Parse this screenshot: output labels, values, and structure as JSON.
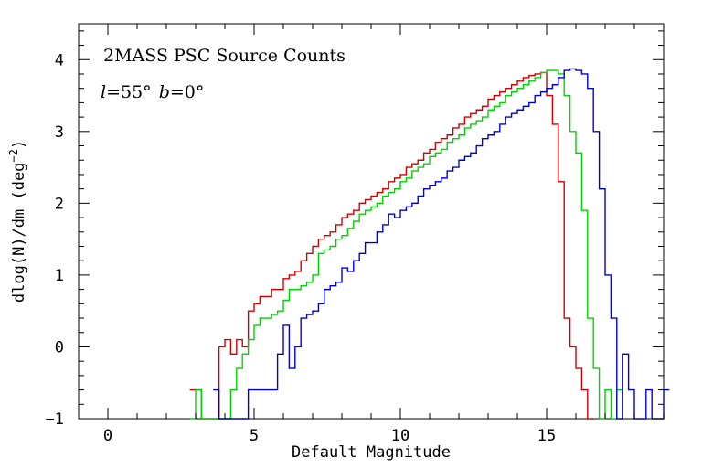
{
  "chart_data": {
    "type": "line",
    "style": "step-histogram",
    "title": "",
    "xlabel": "Default Magnitude",
    "ylabel": "dlog(N)/dm (deg⁻²)",
    "ylabel_main": "dlog(N)/dm (deg",
    "ylabel_exp": "−2",
    "ylabel_close": ")",
    "xlim": [
      -1,
      19
    ],
    "ylim": [
      -1,
      4.5
    ],
    "x_ticks": [
      0,
      5,
      10,
      15
    ],
    "x_tick_labels": [
      "0",
      "5",
      "10",
      "15"
    ],
    "y_ticks": [
      -1,
      0,
      1,
      2,
      3,
      4
    ],
    "y_tick_labels": [
      "−1",
      "0",
      "1",
      "2",
      "3",
      "4"
    ],
    "annotations": {
      "survey": "2MASS PSC Source Counts",
      "l_var": "l",
      "l_value": "=55°",
      "b_var": "b",
      "b_value": "=0°"
    },
    "bin_width": 0.2,
    "series": [
      {
        "name": "red",
        "color": "#d40000",
        "bins": [
          [
            2.8,
            -0.6
          ],
          [
            3.0,
            -0.6
          ],
          [
            3.2,
            -1.0
          ],
          [
            3.4,
            -1.0
          ],
          [
            3.6,
            -1.0
          ],
          [
            3.8,
            0.0
          ],
          [
            4.0,
            0.1
          ],
          [
            4.2,
            -0.1
          ],
          [
            4.4,
            0.1
          ],
          [
            4.6,
            0.0
          ],
          [
            4.8,
            0.5
          ],
          [
            5.0,
            0.6
          ],
          [
            5.2,
            0.7
          ],
          [
            5.4,
            0.7
          ],
          [
            5.6,
            0.8
          ],
          [
            5.8,
            0.8
          ],
          [
            6.0,
            0.95
          ],
          [
            6.2,
            1.0
          ],
          [
            6.4,
            1.05
          ],
          [
            6.6,
            1.2
          ],
          [
            6.8,
            1.3
          ],
          [
            7.0,
            1.4
          ],
          [
            7.2,
            1.5
          ],
          [
            7.4,
            1.55
          ],
          [
            7.6,
            1.6
          ],
          [
            7.8,
            1.7
          ],
          [
            8.0,
            1.8
          ],
          [
            8.2,
            1.85
          ],
          [
            8.4,
            1.9
          ],
          [
            8.6,
            2.0
          ],
          [
            8.8,
            2.05
          ],
          [
            9.0,
            2.1
          ],
          [
            9.2,
            2.15
          ],
          [
            9.4,
            2.2
          ],
          [
            9.6,
            2.3
          ],
          [
            9.8,
            2.35
          ],
          [
            10.0,
            2.4
          ],
          [
            10.2,
            2.5
          ],
          [
            10.4,
            2.55
          ],
          [
            10.6,
            2.6
          ],
          [
            10.8,
            2.7
          ],
          [
            11.0,
            2.75
          ],
          [
            11.2,
            2.85
          ],
          [
            11.4,
            2.9
          ],
          [
            11.6,
            2.95
          ],
          [
            11.8,
            3.05
          ],
          [
            12.0,
            3.1
          ],
          [
            12.2,
            3.2
          ],
          [
            12.4,
            3.25
          ],
          [
            12.6,
            3.3
          ],
          [
            12.8,
            3.35
          ],
          [
            13.0,
            3.45
          ],
          [
            13.2,
            3.5
          ],
          [
            13.4,
            3.55
          ],
          [
            13.6,
            3.6
          ],
          [
            13.8,
            3.65
          ],
          [
            14.0,
            3.7
          ],
          [
            14.2,
            3.75
          ],
          [
            14.4,
            3.78
          ],
          [
            14.6,
            3.8
          ],
          [
            14.8,
            3.82
          ],
          [
            15.0,
            3.5
          ],
          [
            15.2,
            3.1
          ],
          [
            15.4,
            2.3
          ],
          [
            15.6,
            0.4
          ],
          [
            15.8,
            0.0
          ],
          [
            16.0,
            -0.3
          ],
          [
            16.2,
            -0.6
          ],
          [
            16.4,
            -1.0
          ]
        ]
      },
      {
        "name": "green",
        "color": "#00d400",
        "bins": [
          [
            2.8,
            -1.0
          ],
          [
            3.0,
            -0.6
          ],
          [
            3.2,
            -1.0
          ],
          [
            3.4,
            -1.0
          ],
          [
            3.6,
            -1.0
          ],
          [
            3.8,
            -1.0
          ],
          [
            4.0,
            -1.0
          ],
          [
            4.2,
            -0.6
          ],
          [
            4.4,
            -0.3
          ],
          [
            4.6,
            -0.1
          ],
          [
            4.8,
            0.1
          ],
          [
            5.0,
            0.3
          ],
          [
            5.2,
            0.4
          ],
          [
            5.4,
            0.4
          ],
          [
            5.6,
            0.45
          ],
          [
            5.8,
            0.5
          ],
          [
            6.0,
            0.65
          ],
          [
            6.2,
            0.8
          ],
          [
            6.4,
            0.8
          ],
          [
            6.6,
            0.85
          ],
          [
            6.8,
            0.9
          ],
          [
            7.0,
            1.0
          ],
          [
            7.2,
            1.3
          ],
          [
            7.4,
            1.35
          ],
          [
            7.6,
            1.4
          ],
          [
            7.8,
            1.5
          ],
          [
            8.0,
            1.55
          ],
          [
            8.2,
            1.65
          ],
          [
            8.4,
            1.75
          ],
          [
            8.6,
            1.85
          ],
          [
            8.8,
            1.9
          ],
          [
            9.0,
            1.95
          ],
          [
            9.2,
            2.0
          ],
          [
            9.4,
            2.1
          ],
          [
            9.6,
            2.15
          ],
          [
            9.8,
            2.2
          ],
          [
            10.0,
            2.3
          ],
          [
            10.2,
            2.35
          ],
          [
            10.4,
            2.45
          ],
          [
            10.6,
            2.5
          ],
          [
            10.8,
            2.55
          ],
          [
            11.0,
            2.65
          ],
          [
            11.2,
            2.7
          ],
          [
            11.4,
            2.75
          ],
          [
            11.6,
            2.85
          ],
          [
            11.8,
            2.9
          ],
          [
            12.0,
            2.95
          ],
          [
            12.2,
            3.05
          ],
          [
            12.4,
            3.1
          ],
          [
            12.6,
            3.15
          ],
          [
            12.8,
            3.2
          ],
          [
            13.0,
            3.3
          ],
          [
            13.2,
            3.35
          ],
          [
            13.4,
            3.4
          ],
          [
            13.6,
            3.5
          ],
          [
            13.8,
            3.55
          ],
          [
            14.0,
            3.6
          ],
          [
            14.2,
            3.65
          ],
          [
            14.4,
            3.7
          ],
          [
            14.6,
            3.75
          ],
          [
            14.8,
            3.82
          ],
          [
            15.0,
            3.85
          ],
          [
            15.2,
            3.85
          ],
          [
            15.4,
            3.8
          ],
          [
            15.6,
            3.5
          ],
          [
            15.8,
            3.0
          ],
          [
            16.0,
            2.7
          ],
          [
            16.2,
            1.9
          ],
          [
            16.4,
            0.4
          ],
          [
            16.6,
            -0.3
          ],
          [
            16.8,
            -1.0
          ],
          [
            17.0,
            -0.6
          ],
          [
            17.2,
            -1.0
          ],
          [
            17.4,
            -0.6
          ]
        ]
      },
      {
        "name": "blue",
        "color": "#0000d4",
        "bins": [
          [
            3.6,
            -0.6
          ],
          [
            3.8,
            -1.0
          ],
          [
            4.0,
            -1.0
          ],
          [
            4.2,
            -1.0
          ],
          [
            4.4,
            -1.0
          ],
          [
            4.6,
            -1.0
          ],
          [
            4.8,
            -0.6
          ],
          [
            5.0,
            -0.6
          ],
          [
            5.2,
            -0.6
          ],
          [
            5.4,
            -0.6
          ],
          [
            5.6,
            -0.6
          ],
          [
            5.8,
            -0.1
          ],
          [
            6.0,
            0.3
          ],
          [
            6.2,
            -0.3
          ],
          [
            6.4,
            0.0
          ],
          [
            6.6,
            0.4
          ],
          [
            6.8,
            0.45
          ],
          [
            7.0,
            0.5
          ],
          [
            7.2,
            0.6
          ],
          [
            7.4,
            0.8
          ],
          [
            7.6,
            0.85
          ],
          [
            7.8,
            0.9
          ],
          [
            8.0,
            1.1
          ],
          [
            8.2,
            1.05
          ],
          [
            8.4,
            1.2
          ],
          [
            8.6,
            1.3
          ],
          [
            8.8,
            1.45
          ],
          [
            9.0,
            1.45
          ],
          [
            9.2,
            1.6
          ],
          [
            9.4,
            1.7
          ],
          [
            9.6,
            1.85
          ],
          [
            9.8,
            1.8
          ],
          [
            10.0,
            1.9
          ],
          [
            10.2,
            1.95
          ],
          [
            10.4,
            2.0
          ],
          [
            10.6,
            2.1
          ],
          [
            10.8,
            2.2
          ],
          [
            11.0,
            2.25
          ],
          [
            11.2,
            2.3
          ],
          [
            11.4,
            2.35
          ],
          [
            11.6,
            2.45
          ],
          [
            11.8,
            2.5
          ],
          [
            12.0,
            2.6
          ],
          [
            12.2,
            2.65
          ],
          [
            12.4,
            2.7
          ],
          [
            12.6,
            2.8
          ],
          [
            12.8,
            2.9
          ],
          [
            13.0,
            2.95
          ],
          [
            13.2,
            3.0
          ],
          [
            13.4,
            3.1
          ],
          [
            13.6,
            3.2
          ],
          [
            13.8,
            3.25
          ],
          [
            14.0,
            3.3
          ],
          [
            14.2,
            3.35
          ],
          [
            14.4,
            3.4
          ],
          [
            14.6,
            3.5
          ],
          [
            14.8,
            3.55
          ],
          [
            15.0,
            3.6
          ],
          [
            15.2,
            3.65
          ],
          [
            15.4,
            3.75
          ],
          [
            15.6,
            3.85
          ],
          [
            15.8,
            3.87
          ],
          [
            16.0,
            3.85
          ],
          [
            16.2,
            3.8
          ],
          [
            16.4,
            3.6
          ],
          [
            16.6,
            3.0
          ],
          [
            16.8,
            2.2
          ],
          [
            17.0,
            1.0
          ],
          [
            17.2,
            0.4
          ],
          [
            17.4,
            -1.0
          ],
          [
            17.6,
            -0.1
          ],
          [
            17.8,
            -0.6
          ],
          [
            18.0,
            -1.0
          ],
          [
            18.2,
            -1.0
          ],
          [
            18.4,
            -0.6
          ],
          [
            18.6,
            -1.0
          ],
          [
            18.8,
            -1.0
          ],
          [
            19.0,
            -0.6
          ]
        ]
      }
    ]
  }
}
